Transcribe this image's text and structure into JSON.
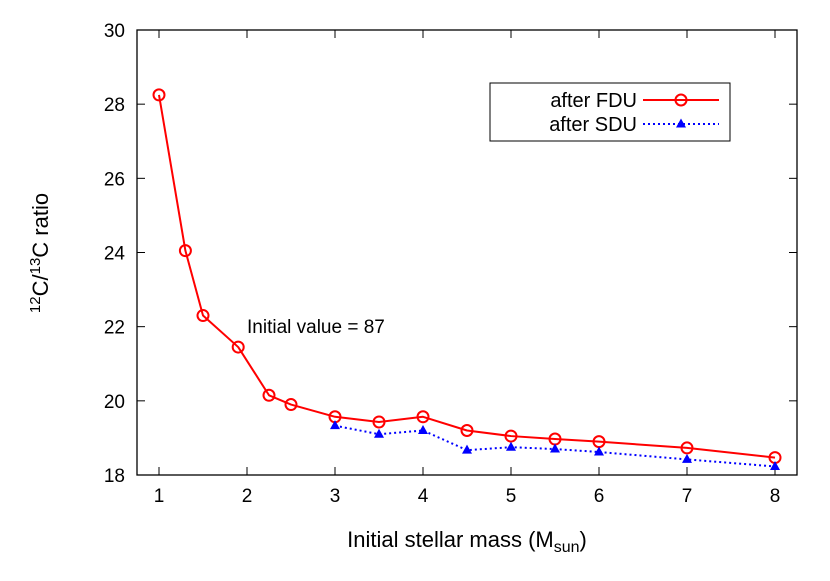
{
  "chart_data": {
    "type": "line",
    "xlabel": {
      "main": "Initial stellar mass (M",
      "sub": "sun",
      "close": ")"
    },
    "ylabel": {
      "sup1": "12",
      "mid": "C/",
      "sup2": "13",
      "rest": "C ratio"
    },
    "xlim": [
      0.75,
      8.25
    ],
    "ylim": [
      18,
      30
    ],
    "xticks": [
      1,
      2,
      3,
      4,
      5,
      6,
      7,
      8
    ],
    "yticks": [
      18,
      20,
      22,
      24,
      26,
      28,
      30
    ],
    "grid": false,
    "legend_position": "top-right",
    "annotation": "Initial value = 87",
    "series": [
      {
        "name": "after FDU",
        "color": "#ff0000",
        "style": "solid",
        "marker": "open-circle",
        "x": [
          1,
          1.3,
          1.5,
          1.9,
          2.25,
          2.5,
          3,
          3.5,
          4,
          4.5,
          5,
          5.5,
          6,
          7,
          8
        ],
        "y": [
          28.25,
          24.05,
          22.3,
          21.45,
          20.15,
          19.9,
          19.57,
          19.43,
          19.57,
          19.2,
          19.05,
          18.97,
          18.9,
          18.73,
          18.47
        ]
      },
      {
        "name": "after SDU",
        "color": "#0000ff",
        "style": "dotted",
        "marker": "filled-triangle",
        "x": [
          3,
          3.5,
          4,
          4.5,
          5,
          5.5,
          6,
          7,
          8
        ],
        "y": [
          19.33,
          19.1,
          19.2,
          18.67,
          18.75,
          18.7,
          18.62,
          18.42,
          18.23
        ]
      }
    ]
  }
}
